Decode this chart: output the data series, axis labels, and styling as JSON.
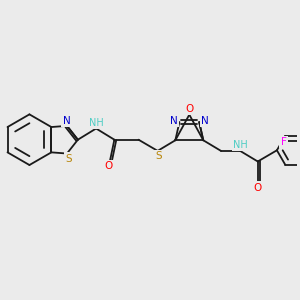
{
  "bg_color": "#ebebeb",
  "atom_colors": {
    "S": "#b8860b",
    "N": "#0000cd",
    "O": "#ff0000",
    "F": "#ff00ff",
    "H": "#4ecdc4",
    "C": "#1a1a1a"
  },
  "bond_color": "#1a1a1a",
  "lw": 1.3
}
